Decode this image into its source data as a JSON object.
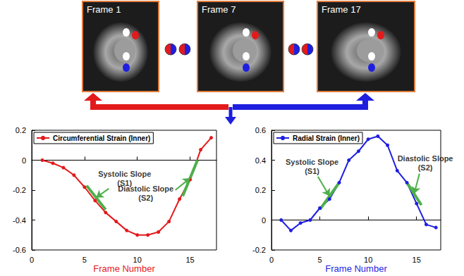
{
  "images": [
    {
      "label": "Frame 1"
    },
    {
      "label": "Frame 7"
    },
    {
      "label": "Frame 17"
    }
  ],
  "chart_data": [
    {
      "type": "line",
      "x": [
        1,
        2,
        3,
        4,
        5,
        6,
        7,
        8,
        9,
        10,
        11,
        12,
        13,
        14,
        15,
        16,
        17
      ],
      "series": [
        {
          "name": "Circumferential Strain (Inner)",
          "color": "#e31a1c",
          "marker": "circle",
          "values": [
            0,
            -0.02,
            -0.05,
            -0.1,
            -0.18,
            -0.27,
            -0.35,
            -0.41,
            -0.47,
            -0.5,
            -0.5,
            -0.48,
            -0.41,
            -0.26,
            -0.13,
            0.07,
            0.15
          ]
        }
      ],
      "xlabel": "Frame Number",
      "xlim": [
        0,
        17.5
      ],
      "xticks": [
        0,
        5,
        10,
        15
      ],
      "ylim": [
        -0.6,
        0.2
      ],
      "yticks": [
        -0.6,
        -0.4,
        -0.2,
        0,
        0.2
      ],
      "grid": false,
      "legend": "upper left",
      "annotations": [
        {
          "text": "Systolic Slope (S1)",
          "color": "#4daf4a",
          "text_at": [
            8.8,
            -0.12
          ],
          "segment": [
            [
              5.2,
              -0.17
            ],
            [
              7,
              -0.33
            ]
          ],
          "arrow": [
            [
              7.3,
              -0.19
            ],
            [
              6.1,
              -0.25
            ]
          ]
        },
        {
          "text": "Diastolic Slope (S2)",
          "color": "#4daf4a",
          "text_at": [
            10.8,
            -0.22
          ],
          "segment": [
            [
              14.3,
              -0.24
            ],
            [
              15.7,
              0
            ]
          ],
          "arrow": [
            [
              13.6,
              -0.2
            ],
            [
              15,
              -0.12
            ]
          ]
        }
      ]
    },
    {
      "type": "line",
      "x": [
        1,
        2,
        3,
        4,
        5,
        6,
        7,
        8,
        9,
        10,
        11,
        12,
        13,
        14,
        15,
        16,
        17
      ],
      "series": [
        {
          "name": "Radial Strain (Inner)",
          "color": "#1f1fe0",
          "marker": "circle",
          "values": [
            0,
            -0.07,
            -0.02,
            0,
            0.08,
            0.14,
            0.25,
            0.4,
            0.46,
            0.54,
            0.56,
            0.5,
            0.33,
            0.25,
            0.11,
            -0.03,
            -0.05
          ]
        }
      ],
      "xlabel": "Frame Number",
      "xlim": [
        0,
        17.5
      ],
      "xticks": [
        0,
        5,
        10,
        15
      ],
      "ylim": [
        -0.2,
        0.6
      ],
      "yticks": [
        -0.2,
        0,
        0.2,
        0.4,
        0.6
      ],
      "grid": false,
      "legend": "upper left",
      "annotations": [
        {
          "text": "Systolic Slope (S1)",
          "color": "#4daf4a",
          "text_at": [
            4.2,
            0.36
          ],
          "segment": [
            [
              5,
              0.07
            ],
            [
              7,
              0.25
            ]
          ],
          "arrow": [
            [
              4.8,
              0.29
            ],
            [
              6,
              0.16
            ]
          ]
        },
        {
          "text": "Diastolic Slope (S2)",
          "color": "#4daf4a",
          "text_at": [
            15.9,
            0.38
          ],
          "segment": [
            [
              14,
              0.25
            ],
            [
              15.5,
              0.1
            ]
          ],
          "arrow": [
            [
              15.3,
              0.31
            ],
            [
              14.75,
              0.175
            ]
          ]
        }
      ]
    }
  ]
}
